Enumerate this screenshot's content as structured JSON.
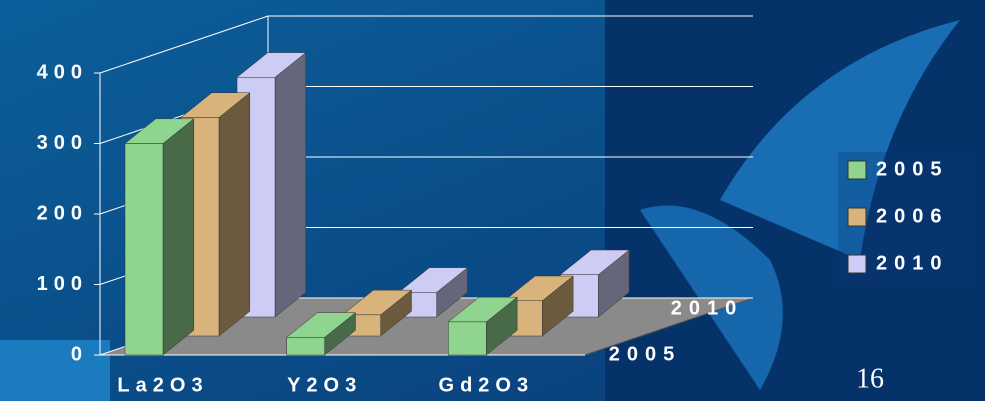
{
  "chart_data": {
    "type": "bar3d",
    "categories": [
      "La2O3",
      "Y2O3",
      "Gd2O3"
    ],
    "series": [
      {
        "name": "2005",
        "color": "#8fd48f",
        "values": [
          300,
          25,
          47
        ]
      },
      {
        "name": "2006",
        "color": "#d8b47c",
        "values": [
          310,
          30,
          50
        ]
      },
      {
        "name": "2010",
        "color": "#ccccf5",
        "values": [
          340,
          35,
          60
        ]
      }
    ],
    "ylim": [
      0,
      400
    ],
    "yticks": [
      0,
      100,
      200,
      300,
      400
    ],
    "grid": true,
    "legend": "right"
  },
  "page_number": "16"
}
